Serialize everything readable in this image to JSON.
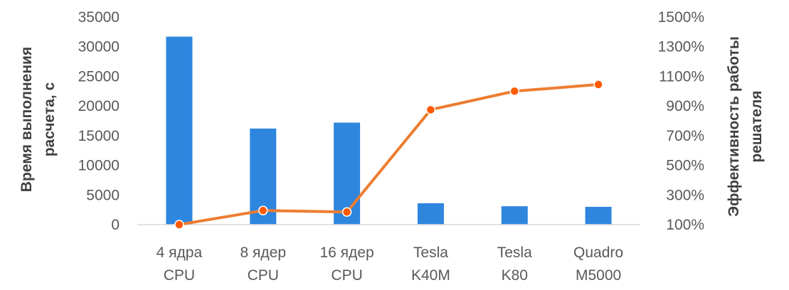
{
  "chart_data": {
    "type": "bar",
    "categories": [
      [
        "4 ядра",
        "CPU"
      ],
      [
        "8 ядер",
        "CPU"
      ],
      [
        "16 ядер",
        "CPU"
      ],
      [
        "Tesla",
        "K40M"
      ],
      [
        "Tesla",
        "K80"
      ],
      [
        "Quadro",
        "M5000"
      ]
    ],
    "series": [
      {
        "type": "bar",
        "axis": "left",
        "values": [
          31700,
          16200,
          17200,
          3600,
          3100,
          3000
        ]
      },
      {
        "type": "line",
        "axis": "right",
        "values": [
          100,
          195,
          185,
          875,
          1000,
          1045
        ]
      }
    ],
    "ylabel": [
      "Время выполнения",
      "расчета, с"
    ],
    "y2label": [
      "Эффективность работы",
      "решателя"
    ],
    "ylim": [
      0,
      35000
    ],
    "yticks": [
      "0",
      "5000",
      "10000",
      "15000",
      "20000",
      "25000",
      "30000",
      "35000"
    ],
    "y2lim": [
      100,
      1500
    ],
    "y2ticks": [
      "100%",
      "300%",
      "500%",
      "700%",
      "900%",
      "1100%",
      "1300%",
      "1500%"
    ],
    "legend": "none",
    "grid": false,
    "colors": {
      "bar": "#2e86de",
      "line": "#ed7d31",
      "marker_fill": "#ff5a00"
    }
  }
}
